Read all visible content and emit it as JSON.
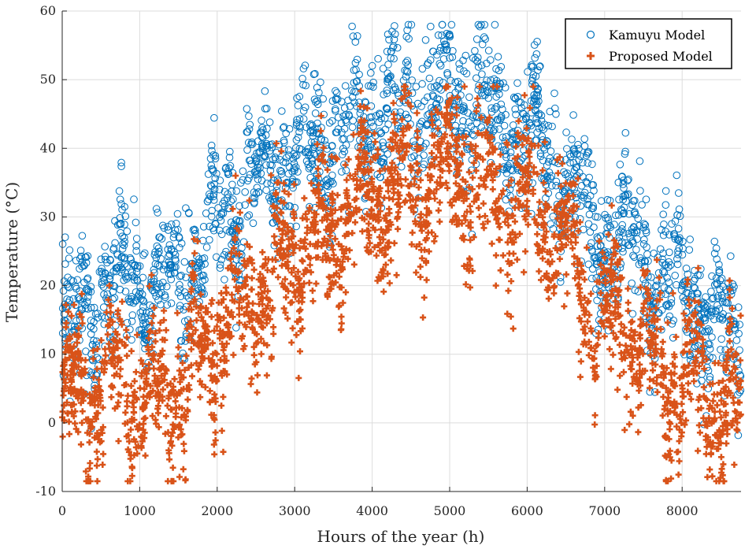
{
  "chart_data": {
    "type": "scatter",
    "title": "",
    "xlabel": "Hours of the year (h)",
    "ylabel": "Temperature (°C)",
    "xlim": [
      0,
      8760
    ],
    "ylim": [
      -10,
      60
    ],
    "xticks": [
      0,
      1000,
      2000,
      3000,
      4000,
      5000,
      6000,
      7000,
      8000
    ],
    "yticks": [
      -10,
      0,
      10,
      20,
      30,
      40,
      50,
      60
    ],
    "xtick_labels": [
      "0",
      "1000",
      "2000",
      "3000",
      "4000",
      "5000",
      "6000",
      "7000",
      "8000"
    ],
    "ytick_labels": [
      "-10",
      "0",
      "10",
      "20",
      "30",
      "40",
      "50",
      "60"
    ],
    "grid": true,
    "legend_position": "top-right",
    "series": [
      {
        "name": "Kamuyu Model",
        "marker": "circle-open",
        "color": "#0072BD",
        "x": [
          0,
          200,
          400,
          600,
          800,
          1000,
          1200,
          1400,
          1600,
          1800,
          2000,
          2200,
          2400,
          2600,
          2800,
          3000,
          3200,
          3400,
          3600,
          3800,
          4000,
          4200,
          4400,
          4600,
          4800,
          5000,
          5200,
          5400,
          5600,
          5800,
          6000,
          6200,
          6400,
          6600,
          6800,
          7000,
          7200,
          7400,
          7600,
          7800,
          8000,
          8200,
          8400,
          8600,
          8760
        ],
        "y": [
          13,
          15,
          17,
          19,
          21,
          20,
          19,
          20,
          23,
          25,
          28,
          31,
          33,
          35,
          37,
          38,
          39,
          40,
          41,
          43,
          45,
          46,
          46,
          46,
          47,
          47,
          47,
          46,
          45,
          43,
          42,
          40,
          38,
          33,
          28,
          26,
          27,
          25,
          22,
          21,
          19,
          17,
          15,
          13,
          10
        ]
      },
      {
        "name": "Proposed Model",
        "marker": "plus",
        "color": "#D95319",
        "x": [
          0,
          200,
          400,
          600,
          800,
          1000,
          1200,
          1400,
          1600,
          1800,
          2000,
          2200,
          2400,
          2600,
          2800,
          3000,
          3200,
          3400,
          3600,
          3800,
          4000,
          4200,
          4400,
          4600,
          4800,
          5000,
          5200,
          5400,
          5600,
          5800,
          6000,
          6200,
          6400,
          6600,
          6800,
          7000,
          7200,
          7400,
          7600,
          7800,
          8000,
          8200,
          8400,
          8600,
          8760
        ],
        "y": [
          3,
          4,
          5,
          6,
          6,
          5,
          4,
          5,
          8,
          10,
          13,
          16,
          18,
          20,
          22,
          24,
          26,
          27,
          29,
          31,
          33,
          34,
          35,
          35,
          35,
          36,
          36,
          35,
          34,
          33,
          32,
          30,
          27,
          24,
          17,
          14,
          15,
          13,
          10,
          8,
          6,
          5,
          4,
          3,
          1
        ]
      }
    ]
  }
}
